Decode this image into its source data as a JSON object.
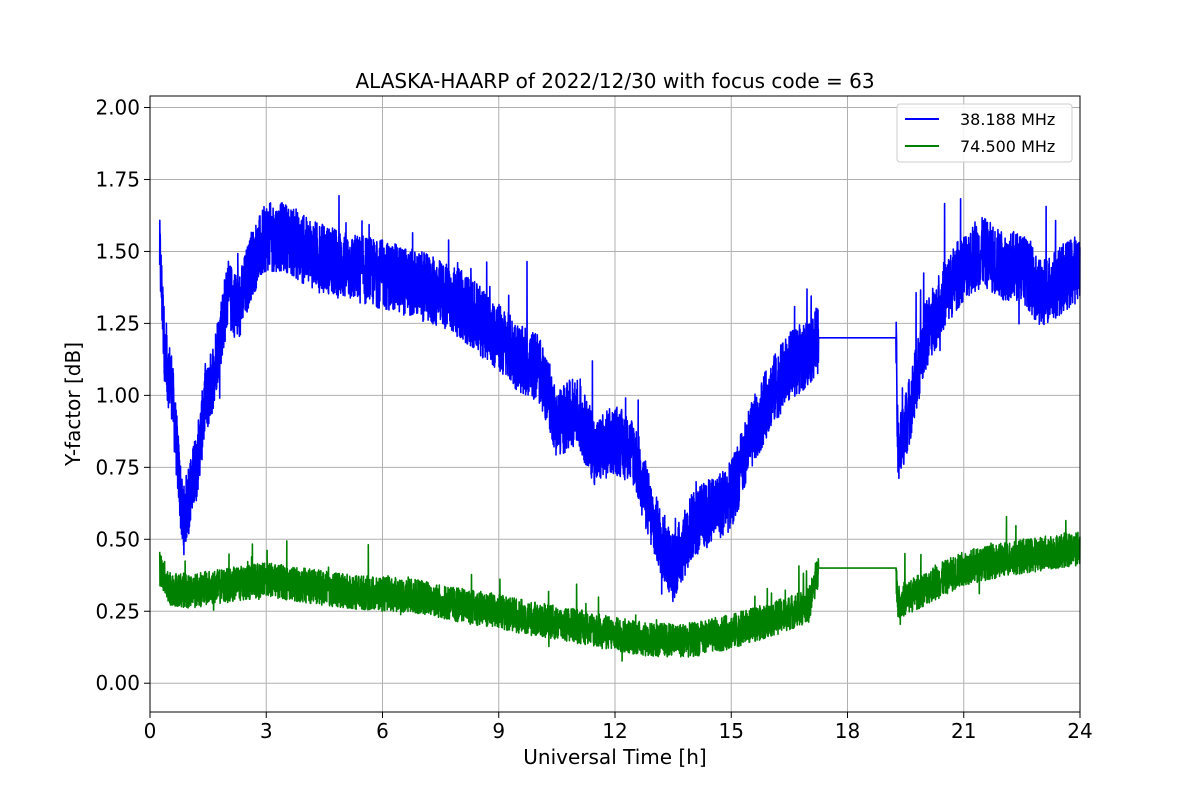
{
  "chart_data": {
    "type": "line",
    "title": "ALASKA-HAARP of 2022/12/30 with focus code = 63",
    "xlabel": "Universal Time [h]",
    "ylabel": "Y-factor [dB]",
    "xlim": [
      0,
      24
    ],
    "ylim": [
      -0.1,
      2.04
    ],
    "xticks": [
      0,
      3,
      6,
      9,
      12,
      15,
      18,
      21,
      24
    ],
    "yticks": [
      0.0,
      0.25,
      0.5,
      0.75,
      1.0,
      1.25,
      1.5,
      1.75,
      2.0
    ],
    "grid": true,
    "legend_position": "top-right",
    "gap": [
      17.25,
      19.25
    ],
    "series": [
      {
        "name": "38.188 MHz",
        "color": "#0000ff",
        "noise": 0.12,
        "points": [
          [
            0.25,
            1.5
          ],
          [
            0.4,
            1.1
          ],
          [
            0.55,
            1.05
          ],
          [
            0.7,
            0.8
          ],
          [
            0.85,
            0.55
          ],
          [
            1.0,
            0.65
          ],
          [
            1.2,
            0.75
          ],
          [
            1.4,
            0.95
          ],
          [
            1.6,
            1.05
          ],
          [
            1.8,
            1.2
          ],
          [
            2.0,
            1.35
          ],
          [
            2.3,
            1.3
          ],
          [
            2.6,
            1.45
          ],
          [
            3.0,
            1.55
          ],
          [
            3.5,
            1.55
          ],
          [
            4.0,
            1.5
          ],
          [
            5.0,
            1.45
          ],
          [
            6.0,
            1.42
          ],
          [
            7.0,
            1.38
          ],
          [
            8.0,
            1.32
          ],
          [
            9.0,
            1.2
          ],
          [
            9.6,
            1.12
          ],
          [
            10.0,
            1.1
          ],
          [
            10.3,
            1.0
          ],
          [
            10.5,
            0.9
          ],
          [
            11.0,
            0.95
          ],
          [
            11.5,
            0.8
          ],
          [
            12.0,
            0.85
          ],
          [
            12.5,
            0.8
          ],
          [
            13.0,
            0.55
          ],
          [
            13.5,
            0.4
          ],
          [
            14.0,
            0.55
          ],
          [
            14.5,
            0.6
          ],
          [
            15.0,
            0.65
          ],
          [
            15.5,
            0.85
          ],
          [
            16.0,
            1.0
          ],
          [
            16.5,
            1.1
          ],
          [
            17.0,
            1.15
          ],
          [
            17.25,
            1.2
          ],
          [
            19.25,
            1.2
          ],
          [
            19.3,
            0.8
          ],
          [
            19.6,
            0.95
          ],
          [
            20.0,
            1.2
          ],
          [
            20.5,
            1.35
          ],
          [
            21.0,
            1.45
          ],
          [
            21.5,
            1.5
          ],
          [
            22.0,
            1.45
          ],
          [
            22.5,
            1.45
          ],
          [
            23.0,
            1.35
          ],
          [
            23.5,
            1.4
          ],
          [
            24.0,
            1.45
          ]
        ]
      },
      {
        "name": "74.500 MHz",
        "color": "#008000",
        "noise": 0.06,
        "points": [
          [
            0.25,
            0.4
          ],
          [
            0.5,
            0.33
          ],
          [
            1.0,
            0.32
          ],
          [
            2.0,
            0.34
          ],
          [
            3.0,
            0.36
          ],
          [
            4.0,
            0.34
          ],
          [
            5.0,
            0.32
          ],
          [
            6.0,
            0.31
          ],
          [
            7.0,
            0.3
          ],
          [
            8.0,
            0.27
          ],
          [
            9.0,
            0.25
          ],
          [
            10.0,
            0.22
          ],
          [
            11.0,
            0.2
          ],
          [
            12.0,
            0.17
          ],
          [
            13.0,
            0.15
          ],
          [
            14.0,
            0.15
          ],
          [
            15.0,
            0.18
          ],
          [
            16.0,
            0.22
          ],
          [
            17.0,
            0.27
          ],
          [
            17.25,
            0.4
          ],
          [
            19.25,
            0.4
          ],
          [
            19.3,
            0.28
          ],
          [
            20.0,
            0.33
          ],
          [
            21.0,
            0.4
          ],
          [
            22.0,
            0.43
          ],
          [
            23.0,
            0.45
          ],
          [
            24.0,
            0.47
          ]
        ]
      }
    ]
  }
}
